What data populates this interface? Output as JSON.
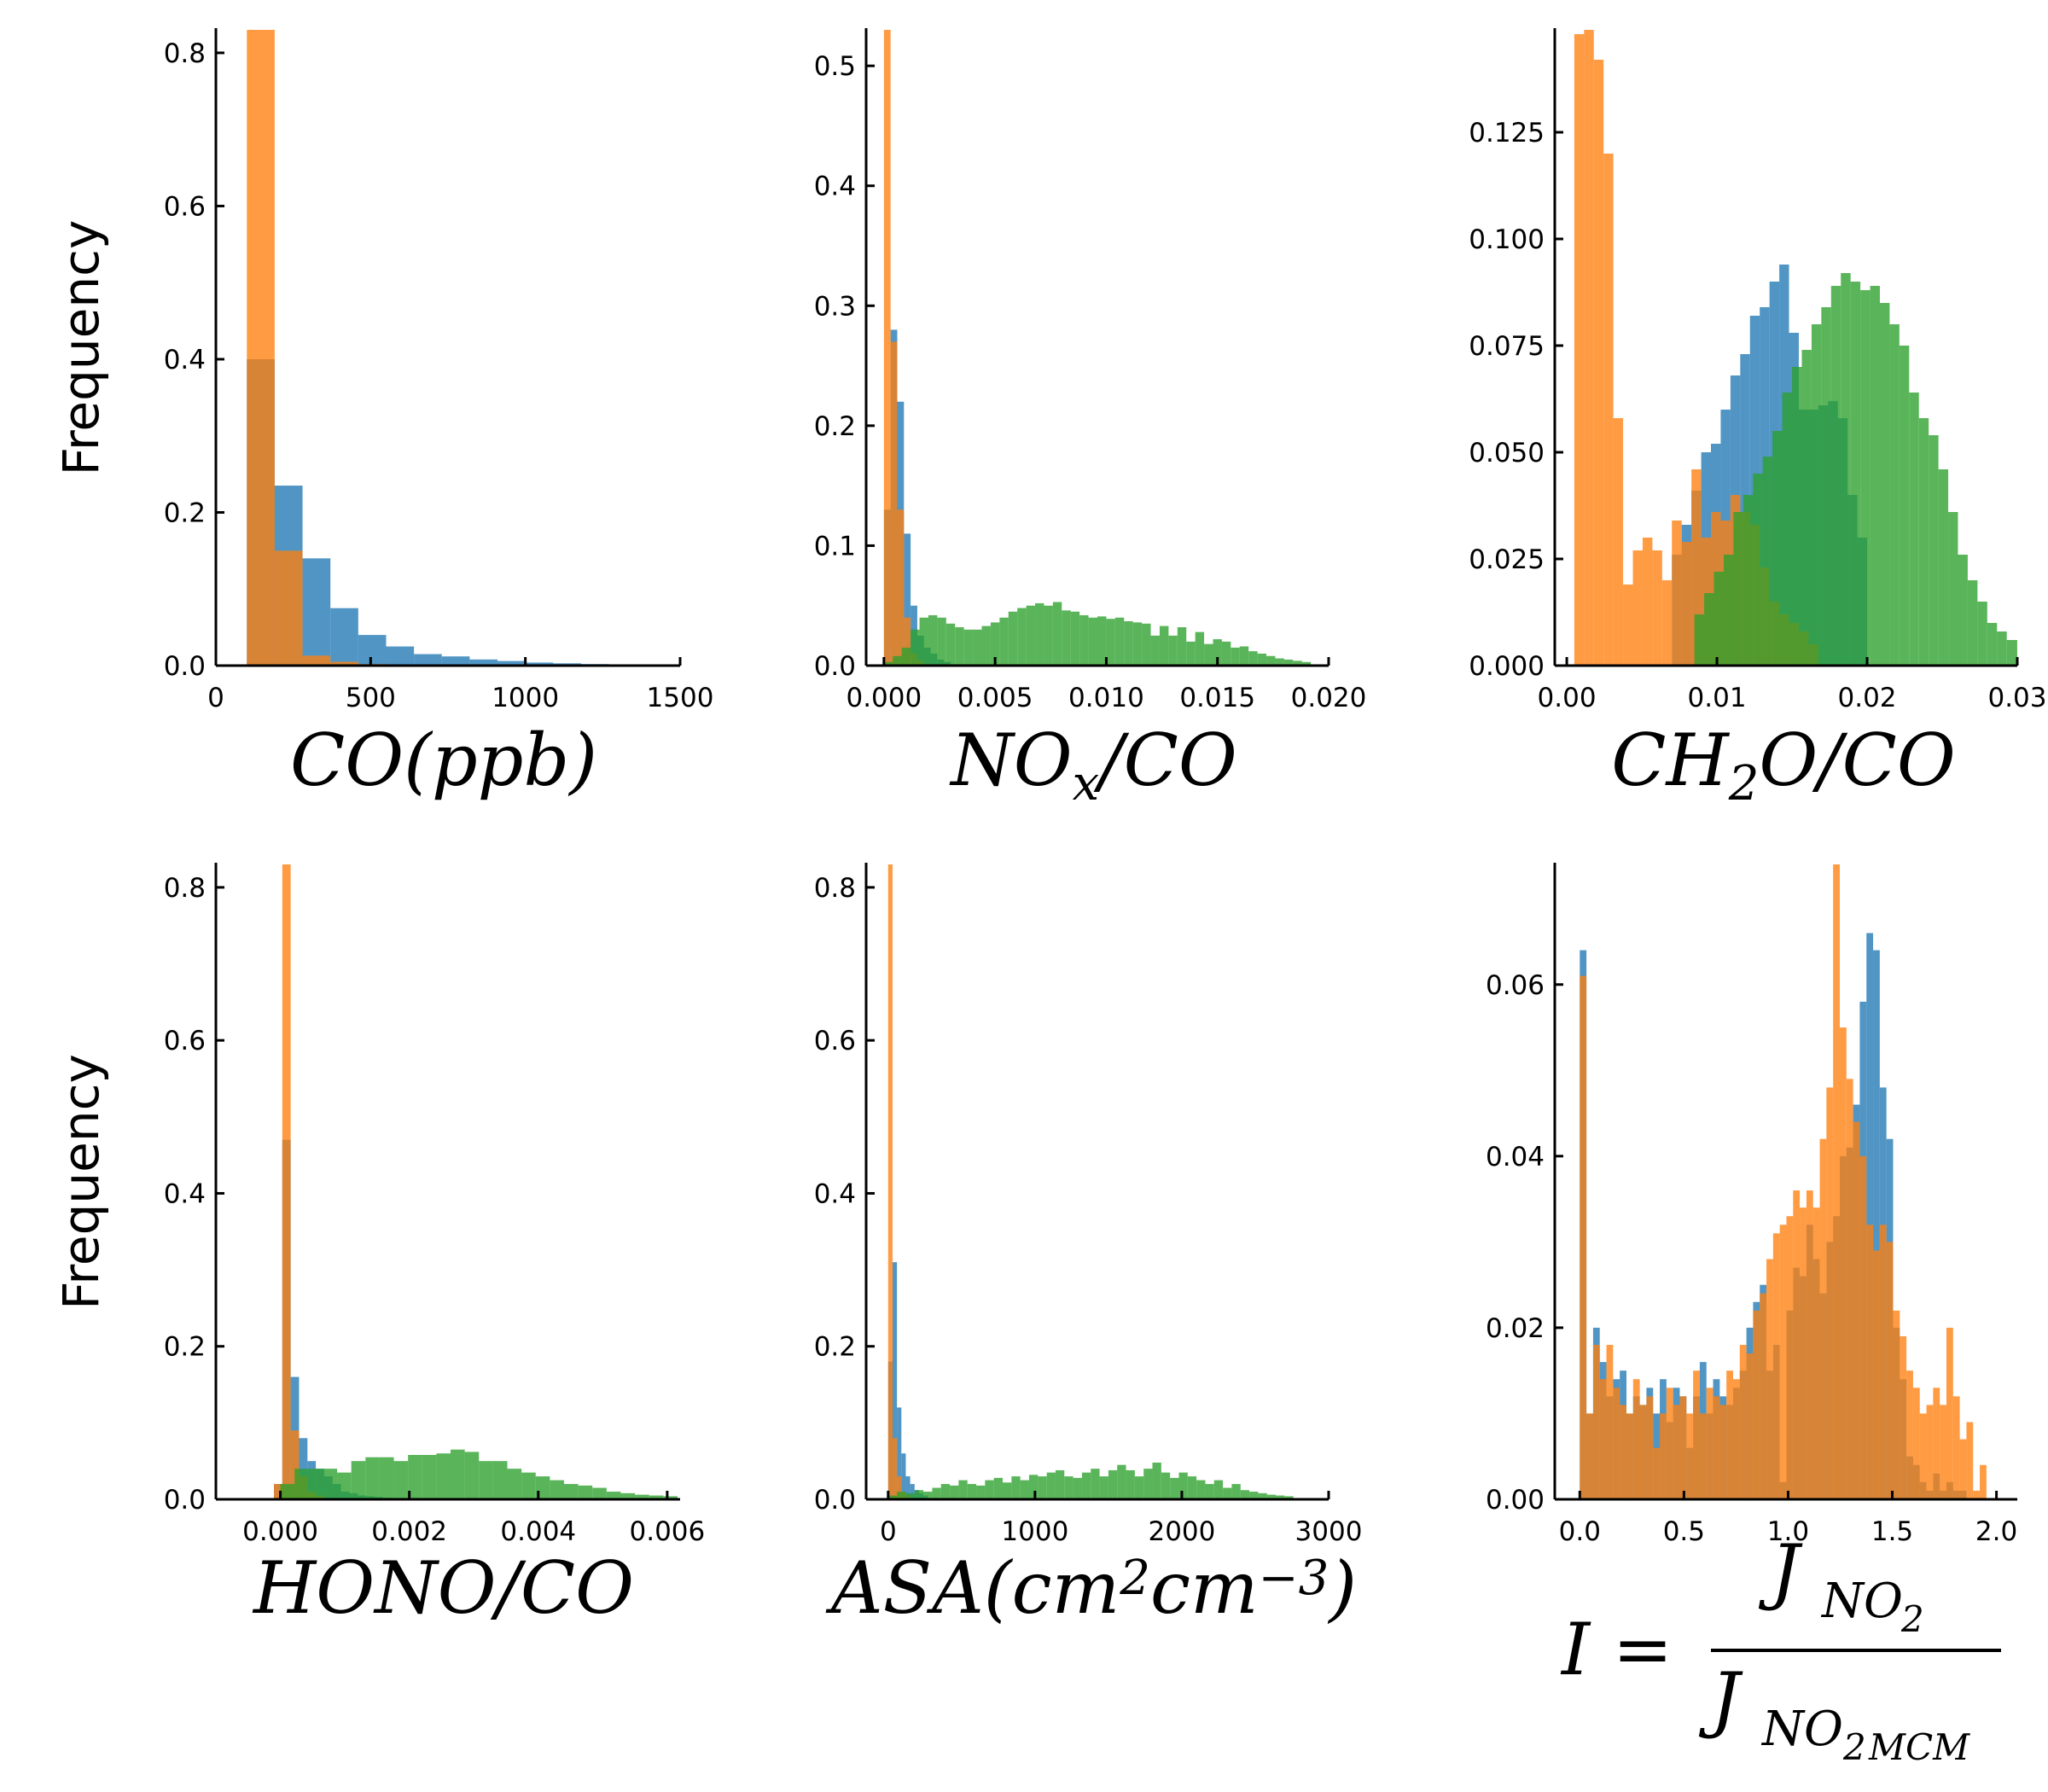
{
  "colors": {
    "blue": "#1f77b4",
    "orange": "#ff7f0e",
    "green": "#2ca02c"
  },
  "chart_data": [
    {
      "id": "co",
      "type": "histogram",
      "ylabel": "Frequency",
      "xlabel_parts": [
        {
          "t": "CO(ppb)"
        }
      ],
      "xlim": [
        0,
        1500
      ],
      "ylim": [
        0,
        0.83
      ],
      "xticks": [
        0,
        500,
        1000,
        1500
      ],
      "xtick_labels": [
        "0",
        "500",
        "1000",
        "1500"
      ],
      "yticks": [
        0,
        0.2,
        0.4,
        0.6,
        0.8
      ],
      "ytick_labels": [
        "0.0",
        "0.2",
        "0.4",
        "0.6",
        "0.8"
      ],
      "series": [
        {
          "color": "blue",
          "x0": 100,
          "width": 90,
          "values": [
            0.4,
            0.235,
            0.14,
            0.075,
            0.04,
            0.025,
            0.015,
            0.012,
            0.008,
            0.006,
            0.004,
            0.003,
            0.002,
            0.001,
            0.001
          ]
        },
        {
          "color": "orange",
          "x0": 100,
          "width": 90,
          "values": [
            0.83,
            0.15,
            0.013,
            0.005,
            0.002
          ]
        }
      ]
    },
    {
      "id": "nox",
      "type": "histogram",
      "ylabel": "",
      "xlabel_parts": [
        {
          "t": "NO"
        },
        {
          "t": "x",
          "sub": true
        },
        {
          "t": "/CO"
        }
      ],
      "xlim": [
        -0.0008,
        0.02
      ],
      "ylim": [
        0,
        0.53
      ],
      "xticks": [
        0,
        0.005,
        0.01,
        0.015,
        0.02
      ],
      "xtick_labels": [
        "0.000",
        "0.005",
        "0.010",
        "0.015",
        "0.020"
      ],
      "yticks": [
        0,
        0.1,
        0.2,
        0.3,
        0.4,
        0.5
      ],
      "ytick_labels": [
        "0.0",
        "0.1",
        "0.2",
        "0.3",
        "0.4",
        "0.5"
      ],
      "series": [
        {
          "color": "blue",
          "x0": 0,
          "width": 0.0003,
          "values": [
            0.13,
            0.28,
            0.22,
            0.11,
            0.05,
            0.025,
            0.015,
            0.01,
            0.005,
            0.003
          ]
        },
        {
          "color": "orange",
          "x0": 0,
          "width": 0.0003,
          "values": [
            0.53,
            0.27,
            0.13,
            0.04,
            0.01,
            0.004
          ]
        },
        {
          "color": "green",
          "x0": 0,
          "width": 0.0004,
          "values": [
            0.003,
            0.008,
            0.015,
            0.03,
            0.04,
            0.042,
            0.04,
            0.035,
            0.032,
            0.03,
            0.03,
            0.033,
            0.036,
            0.04,
            0.045,
            0.048,
            0.05,
            0.052,
            0.05,
            0.053,
            0.046,
            0.045,
            0.042,
            0.04,
            0.041,
            0.039,
            0.04,
            0.037,
            0.036,
            0.035,
            0.025,
            0.033,
            0.025,
            0.032,
            0.02,
            0.028,
            0.018,
            0.022,
            0.02,
            0.015,
            0.016,
            0.012,
            0.01,
            0.008,
            0.006,
            0.005,
            0.004,
            0.003
          ]
        }
      ]
    },
    {
      "id": "ch2o",
      "type": "histogram",
      "ylabel": "",
      "xlabel_parts": [
        {
          "t": "CH"
        },
        {
          "t": "2",
          "sub": true
        },
        {
          "t": "O/CO"
        }
      ],
      "xlim": [
        -0.0008,
        0.03
      ],
      "ylim": [
        0,
        0.149
      ],
      "xticks": [
        0,
        0.01,
        0.02,
        0.03
      ],
      "xtick_labels": [
        "0.00",
        "0.01",
        "0.02",
        "0.03"
      ],
      "yticks": [
        0,
        0.025,
        0.05,
        0.075,
        0.1,
        0.125
      ],
      "ytick_labels": [
        "0.000",
        "0.025",
        "0.050",
        "0.075",
        "0.100",
        "0.125"
      ],
      "series": [
        {
          "color": "blue",
          "x0": 0.007,
          "width": 0.00065,
          "values": [
            0.026,
            0.033,
            0.041,
            0.05,
            0.052,
            0.06,
            0.068,
            0.073,
            0.082,
            0.084,
            0.09,
            0.094,
            0.078,
            0.06,
            0.06,
            0.061,
            0.062,
            0.058,
            0.04,
            0.03
          ]
        },
        {
          "color": "orange",
          "x0": 0.0005,
          "width": 0.00065,
          "values": [
            0.148,
            0.15,
            0.142,
            0.12,
            0.058,
            0.019,
            0.027,
            0.03,
            0.027,
            0.02,
            0.034,
            0.029,
            0.046,
            0.03,
            0.036,
            0.034,
            0.04,
            0.036,
            0.033,
            0.023,
            0.015,
            0.012,
            0.01,
            0.008,
            0.005
          ]
        },
        {
          "color": "green",
          "x0": 0.0085,
          "width": 0.00065,
          "values": [
            0.012,
            0.017,
            0.022,
            0.026,
            0.036,
            0.04,
            0.045,
            0.049,
            0.055,
            0.064,
            0.07,
            0.074,
            0.08,
            0.084,
            0.089,
            0.092,
            0.09,
            0.088,
            0.089,
            0.085,
            0.08,
            0.075,
            0.064,
            0.058,
            0.054,
            0.046,
            0.036,
            0.026,
            0.02,
            0.015,
            0.01,
            0.008,
            0.006,
            0.006,
            0.004,
            0.003,
            0.002,
            0.001
          ]
        }
      ]
    },
    {
      "id": "hono",
      "type": "histogram",
      "ylabel": "Frequency",
      "xlabel_parts": [
        {
          "t": "HONO/CO"
        }
      ],
      "xlim": [
        -0.001,
        0.0062
      ],
      "ylim": [
        0,
        0.83
      ],
      "xticks": [
        0,
        0.002,
        0.004,
        0.006
      ],
      "xtick_labels": [
        "0.000",
        "0.002",
        "0.004",
        "0.006"
      ],
      "yticks": [
        0,
        0.2,
        0.4,
        0.6,
        0.8
      ],
      "ytick_labels": [
        "0.0",
        "0.2",
        "0.4",
        "0.6",
        "0.8"
      ],
      "series": [
        {
          "color": "blue",
          "x0": -0.0001,
          "width": 0.00013,
          "values": [
            0.02,
            0.47,
            0.16,
            0.08,
            0.05,
            0.04,
            0.03,
            0.02,
            0.01,
            0.008,
            0.005,
            0.004,
            0.003,
            0.002
          ]
        },
        {
          "color": "orange",
          "x0": -0.0001,
          "width": 0.00013,
          "values": [
            0.02,
            0.83,
            0.09,
            0.03,
            0.01,
            0.005
          ]
        },
        {
          "color": "green",
          "x0": 0,
          "width": 0.00022,
          "values": [
            0.02,
            0.04,
            0.04,
            0.04,
            0.035,
            0.05,
            0.055,
            0.055,
            0.05,
            0.058,
            0.058,
            0.06,
            0.065,
            0.062,
            0.05,
            0.05,
            0.04,
            0.035,
            0.03,
            0.025,
            0.02,
            0.018,
            0.015,
            0.01,
            0.008,
            0.006,
            0.005,
            0.004
          ]
        }
      ]
    },
    {
      "id": "asa",
      "type": "histogram",
      "ylabel": "",
      "xlabel_parts": [
        {
          "t": "ASA(cm"
        },
        {
          "t": "2",
          "sup": true
        },
        {
          "t": "cm"
        },
        {
          "t": "−3",
          "sup": true
        },
        {
          "t": ")"
        }
      ],
      "xlim": [
        -150,
        3000
      ],
      "ylim": [
        0,
        0.83
      ],
      "xticks": [
        0,
        1000,
        2000,
        3000
      ],
      "xtick_labels": [
        "0",
        "1000",
        "2000",
        "3000"
      ],
      "yticks": [
        0,
        0.2,
        0.4,
        0.6,
        0.8
      ],
      "ytick_labels": [
        "0.0",
        "0.2",
        "0.4",
        "0.6",
        "0.8"
      ],
      "series": [
        {
          "color": "blue",
          "x0": 0,
          "width": 30,
          "values": [
            0.18,
            0.31,
            0.12,
            0.06,
            0.03,
            0.02,
            0.012,
            0.008,
            0.005
          ]
        },
        {
          "color": "orange",
          "x0": 0,
          "width": 30,
          "values": [
            0.83,
            0.08,
            0.03,
            0.01,
            0.005
          ]
        },
        {
          "color": "green",
          "x0": 0,
          "width": 60,
          "values": [
            0.005,
            0.01,
            0.008,
            0.012,
            0.01,
            0.015,
            0.02,
            0.018,
            0.025,
            0.02,
            0.018,
            0.025,
            0.028,
            0.022,
            0.03,
            0.025,
            0.032,
            0.03,
            0.035,
            0.038,
            0.03,
            0.028,
            0.035,
            0.04,
            0.03,
            0.038,
            0.045,
            0.038,
            0.03,
            0.04,
            0.048,
            0.035,
            0.028,
            0.035,
            0.03,
            0.025,
            0.02,
            0.025,
            0.015,
            0.02,
            0.012,
            0.01,
            0.008,
            0.006,
            0.005,
            0.004
          ]
        }
      ]
    },
    {
      "id": "ratio",
      "type": "histogram",
      "ylabel": "",
      "xlabel_parts": [
        {
          "t": "I ="
        },
        {
          "t": "J",
          "frac_num": true
        },
        {
          "t": "NO",
          "num_sub": true
        },
        {
          "t": "2",
          "num_sub2": true
        },
        {
          "t": "J",
          "frac_den": true
        },
        {
          "t": "NO",
          "den_sub": true
        },
        {
          "t": "2",
          "den_sub2": true
        },
        {
          "t": "MCM",
          "den_sub3": true
        }
      ],
      "xlim": [
        -0.12,
        2.1
      ],
      "ylim": [
        0,
        0.074
      ],
      "xticks": [
        0,
        0.5,
        1.0,
        1.5,
        2.0
      ],
      "xtick_labels": [
        "0.0",
        "0.5",
        "1.0",
        "1.5",
        "2.0"
      ],
      "yticks": [
        0,
        0.02,
        0.04,
        0.06
      ],
      "ytick_labels": [
        "0.00",
        "0.02",
        "0.04",
        "0.06"
      ],
      "series": [
        {
          "color": "blue",
          "x0": 0,
          "width": 0.032,
          "values": [
            0.064,
            0.01,
            0.02,
            0.016,
            0.012,
            0.014,
            0.015,
            0.01,
            0.012,
            0.011,
            0.013,
            0.01,
            0.014,
            0.009,
            0.013,
            0.012,
            0.006,
            0.012,
            0.016,
            0.01,
            0.014,
            0.012,
            0.011,
            0.013,
            0.015,
            0.02,
            0.023,
            0.025,
            0.015,
            0.018,
            0.002,
            0.022,
            0.027,
            0.026,
            0.032,
            0.028,
            0.024,
            0.03,
            0.033,
            0.04,
            0.041,
            0.046,
            0.058,
            0.066,
            0.064,
            0.048,
            0.042,
            0.02,
            0.014,
            0.005,
            0.004,
            0.002,
            0.001,
            0.003,
            0.001,
            0.002,
            0.001,
            0.001
          ]
        },
        {
          "color": "orange",
          "x0": 0,
          "width": 0.032,
          "values": [
            0.061,
            0.01,
            0.018,
            0.014,
            0.018,
            0.013,
            0.011,
            0.01,
            0.014,
            0.011,
            0.012,
            0.006,
            0.01,
            0.013,
            0.011,
            0.012,
            0.01,
            0.015,
            0.01,
            0.013,
            0.012,
            0.011,
            0.015,
            0.014,
            0.018,
            0.017,
            0.022,
            0.024,
            0.028,
            0.031,
            0.032,
            0.033,
            0.036,
            0.034,
            0.036,
            0.034,
            0.042,
            0.048,
            0.074,
            0.055,
            0.049,
            0.044,
            0.04,
            0.032,
            0.029,
            0.032,
            0.03,
            0.022,
            0.019,
            0.015,
            0.013,
            0.01,
            0.011,
            0.013,
            0.011,
            0.02,
            0.012,
            0.007,
            0.009,
            0.001,
            0.004
          ]
        }
      ]
    }
  ]
}
